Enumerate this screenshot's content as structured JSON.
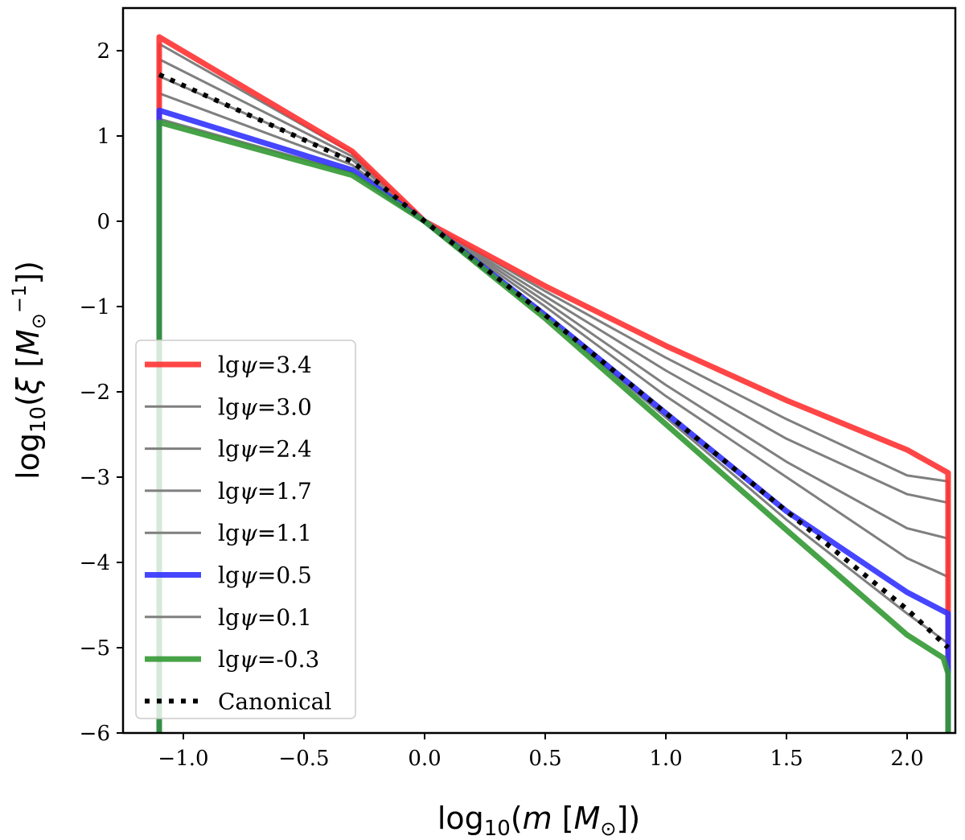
{
  "chart_data": {
    "type": "line",
    "xlabel": "log10(m [M⊙])",
    "ylabel": "log10(ξ [M⊙⁻¹])",
    "xlim": [
      -1.25,
      2.2
    ],
    "ylim": [
      -6,
      2.5
    ],
    "xticks": [
      -1.0,
      -0.5,
      0.0,
      0.5,
      1.0,
      1.5,
      2.0
    ],
    "xtick_labels": [
      "−1.0",
      "−0.5",
      "0.0",
      "0.5",
      "1.0",
      "1.5",
      "2.0"
    ],
    "yticks": [
      -6,
      -5,
      -4,
      -3,
      -2,
      -1,
      0,
      1,
      2
    ],
    "ytick_labels": [
      "−6",
      "−5",
      "−4",
      "−3",
      "−2",
      "−1",
      "0",
      "1",
      "2"
    ],
    "drop_to": -6,
    "legend_position": "lower-left",
    "series": [
      {
        "name": "lgψ=3.4",
        "label_prefix": "lg",
        "label_symbol": "ψ",
        "label_value": "=3.4",
        "color": "#ff3232",
        "style": "thick",
        "x": [
          -1.1,
          -0.3,
          0.0,
          0.5,
          1.0,
          1.5,
          2.0,
          2.17
        ],
        "y": [
          2.16,
          0.82,
          0.0,
          -0.76,
          -1.46,
          -2.1,
          -2.68,
          -2.95
        ]
      },
      {
        "name": "lgψ=3.0",
        "label_prefix": "lg",
        "label_symbol": "ψ",
        "label_value": "=3.0",
        "color": "#7f7f7f",
        "style": "thin",
        "x": [
          -1.1,
          -0.3,
          0.0,
          0.5,
          1.0,
          1.5,
          2.0,
          2.17
        ],
        "y": [
          2.08,
          0.8,
          0.0,
          -0.82,
          -1.6,
          -2.32,
          -2.98,
          -3.05
        ]
      },
      {
        "name": "lgψ=2.4",
        "label_prefix": "lg",
        "label_symbol": "ψ",
        "label_value": "=2.4",
        "color": "#7f7f7f",
        "style": "thin",
        "x": [
          -1.1,
          -0.3,
          0.0,
          0.5,
          1.0,
          1.5,
          2.0,
          2.17
        ],
        "y": [
          1.9,
          0.76,
          0.0,
          -0.88,
          -1.75,
          -2.55,
          -3.2,
          -3.3
        ]
      },
      {
        "name": "lgψ=1.7",
        "label_prefix": "lg",
        "label_symbol": "ψ",
        "label_value": "=1.7",
        "color": "#7f7f7f",
        "style": "thin",
        "x": [
          -1.1,
          -0.3,
          0.0,
          0.5,
          1.0,
          1.5,
          2.0,
          2.17
        ],
        "y": [
          1.7,
          0.72,
          0.0,
          -0.94,
          -1.92,
          -2.82,
          -3.6,
          -3.72
        ]
      },
      {
        "name": "lgψ=1.1",
        "label_prefix": "lg",
        "label_symbol": "ψ",
        "label_value": "=1.1",
        "color": "#7f7f7f",
        "style": "thin",
        "x": [
          -1.1,
          -0.3,
          0.0,
          0.5,
          1.0,
          1.5,
          2.0,
          2.17
        ],
        "y": [
          1.5,
          0.66,
          0.0,
          -1.0,
          -2.05,
          -3.0,
          -3.95,
          -4.17
        ]
      },
      {
        "name": "lgψ=0.5",
        "label_prefix": "lg",
        "label_symbol": "ψ",
        "label_value": "=0.5",
        "color": "#3232ff",
        "style": "thick",
        "x": [
          -1.1,
          -0.3,
          0.0,
          0.5,
          1.0,
          1.5,
          2.0,
          2.17
        ],
        "y": [
          1.3,
          0.6,
          0.0,
          -1.1,
          -2.25,
          -3.4,
          -4.35,
          -4.6
        ]
      },
      {
        "name": "lgψ=0.1",
        "label_prefix": "lg",
        "label_symbol": "ψ",
        "label_value": "=0.1",
        "color": "#7f7f7f",
        "style": "thin",
        "x": [
          -1.1,
          -0.3,
          0.0,
          0.5,
          1.0,
          1.5,
          2.0,
          2.17
        ],
        "y": [
          1.2,
          0.57,
          0.0,
          -1.12,
          -2.3,
          -3.5,
          -4.6,
          -4.95
        ]
      },
      {
        "name": "lgψ=-0.3",
        "label_prefix": "lg",
        "label_symbol": "ψ",
        "label_value": "=-0.3",
        "color": "#339933",
        "style": "thick",
        "x": [
          -1.1,
          -0.3,
          0.0,
          0.5,
          1.0,
          1.5,
          2.0,
          2.15,
          2.17
        ],
        "y": [
          1.16,
          0.54,
          0.0,
          -1.14,
          -2.38,
          -3.62,
          -4.85,
          -5.12,
          -5.3
        ]
      },
      {
        "name": "Canonical",
        "label_prefix": "",
        "label_symbol": "",
        "label_value": "Canonical",
        "color": "#000000",
        "style": "dotted",
        "x": [
          -1.1,
          -0.3,
          0.0,
          0.5,
          1.0,
          1.5,
          2.0,
          2.17
        ],
        "y": [
          1.72,
          0.7,
          0.0,
          -1.1,
          -2.25,
          -3.4,
          -4.55,
          -5.0
        ]
      }
    ]
  }
}
